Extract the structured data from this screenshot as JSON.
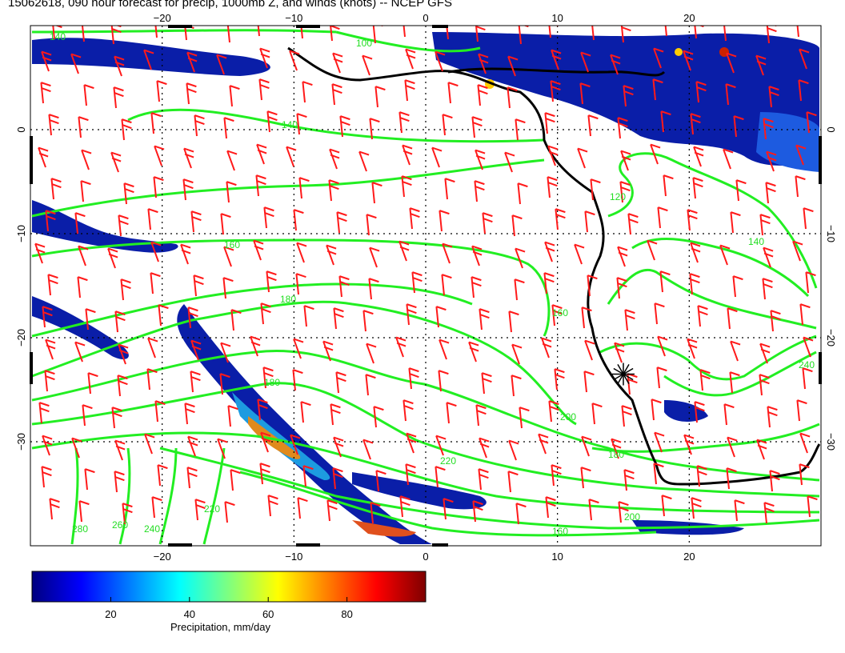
{
  "title": "15062618, 090 hour forecast for precip, 1000mb Z, and winds (knots) -- NCEP GFS",
  "colors": {
    "contour": "#22ee22",
    "barb": "#ff1a1a",
    "coast": "#000000",
    "grid": "#000000"
  },
  "map": {
    "lon_range": [
      -30,
      30
    ],
    "lat_range": [
      -40,
      10
    ],
    "lon_ticks": [
      -20,
      -10,
      0,
      10,
      20
    ],
    "lat_ticks": [
      0,
      -10,
      -20,
      -30
    ],
    "lon_tick_labels": [
      "−20",
      "−10",
      "0",
      "10",
      "20"
    ],
    "lat_tick_labels": [
      "0",
      "−10",
      "−20",
      "−30"
    ],
    "contour_labels": [
      "140",
      "140",
      "100",
      "160",
      "180",
      "180",
      "200",
      "220",
      "240",
      "220",
      "200",
      "180",
      "160",
      "140",
      "120",
      "160",
      "240",
      "260",
      "280"
    ],
    "marker": {
      "name": "asterisk",
      "lon": 15,
      "lat": -23.5
    }
  },
  "colorbar": {
    "label": "Precipitation, mm/day",
    "ticks": [
      20,
      40,
      60,
      80
    ],
    "range": [
      0,
      100
    ],
    "colors": [
      "#00007f",
      "#0000ff",
      "#007fff",
      "#00ffff",
      "#7fff7f",
      "#ffff00",
      "#ff7f00",
      "#ff0000",
      "#7f0000"
    ]
  },
  "chart_data": {
    "type": "map",
    "title": "15062618, 090 hour forecast for precip, 1000mb Z, and winds (knots) -- NCEP GFS",
    "fields": [
      "precip (mm/day)",
      "1000mb geopotential height",
      "wind barbs (knots)"
    ],
    "contour_levels": [
      100,
      120,
      140,
      160,
      180,
      200,
      220,
      240,
      260,
      280
    ],
    "xlim": [
      -30,
      30
    ],
    "ylim": [
      -40,
      10
    ]
  }
}
